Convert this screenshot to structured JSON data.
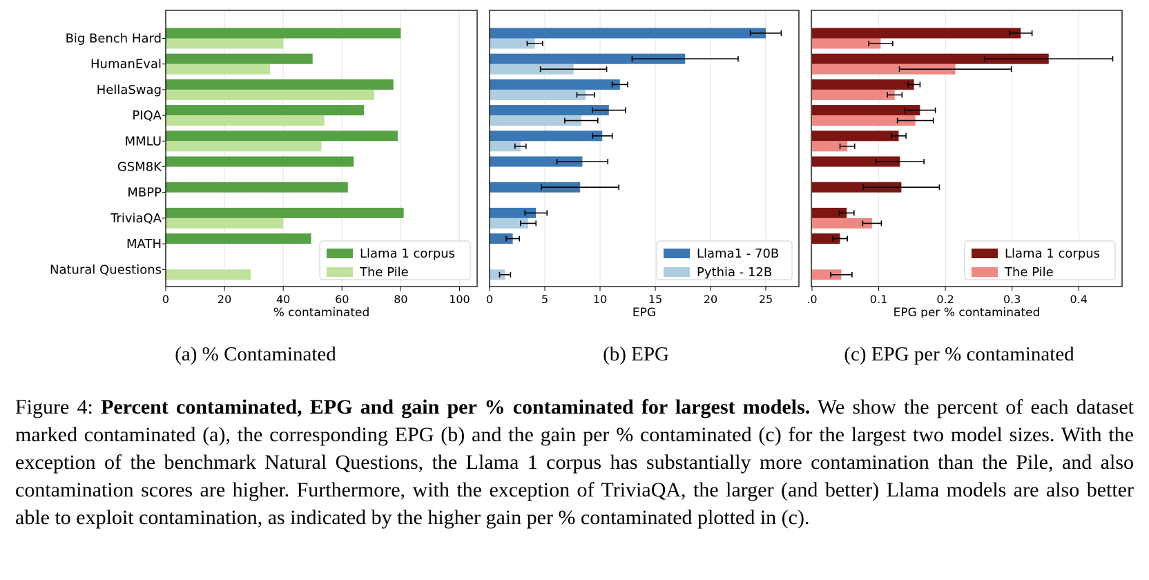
{
  "categories": [
    "Big Bench Hard",
    "HumanEval",
    "HellaSwag",
    "PIQA",
    "MMLU",
    "GSM8K",
    "MBPP",
    "TriviaQA",
    "MATH",
    "Natural Questions"
  ],
  "chart_data": [
    {
      "type": "bar",
      "orientation": "horizontal",
      "panel": "a",
      "xlabel": "% contaminated",
      "xlim": [
        0,
        106
      ],
      "xticks": [
        0,
        20,
        40,
        60,
        80,
        100
      ],
      "grid": "vertical",
      "legend_placement": "lower-right",
      "series": [
        {
          "name": "Llama 1 corpus",
          "color": "#57a145",
          "values": [
            80,
            50,
            77.5,
            67.5,
            79,
            64,
            62,
            81,
            49.5,
            null
          ]
        },
        {
          "name": "The Pile",
          "color": "#bfe29b",
          "values": [
            40,
            35.5,
            71,
            54,
            53,
            null,
            null,
            40,
            null,
            29
          ]
        }
      ]
    },
    {
      "type": "bar",
      "orientation": "horizontal",
      "panel": "b",
      "xlabel": "EPG",
      "xlim": [
        0,
        28
      ],
      "xticks": [
        0,
        5,
        10,
        15,
        20,
        25
      ],
      "grid": "vertical",
      "legend_placement": "lower-right",
      "series": [
        {
          "name": "Llama1 - 70B",
          "color": "#3a77b3",
          "values": [
            25,
            17.7,
            11.8,
            10.8,
            10.2,
            8.4,
            8.2,
            4.2,
            2.1,
            null
          ],
          "err": [
            1.4,
            4.8,
            0.7,
            1.5,
            0.9,
            2.3,
            3.5,
            1.0,
            0.6,
            null
          ]
        },
        {
          "name": "Pythia - 12B",
          "color": "#afcde1",
          "values": [
            4.1,
            7.6,
            8.7,
            8.3,
            2.8,
            null,
            null,
            3.5,
            null,
            1.4
          ],
          "err": [
            0.7,
            3.0,
            0.8,
            1.5,
            0.5,
            null,
            null,
            0.7,
            null,
            0.5
          ]
        }
      ]
    },
    {
      "type": "bar",
      "orientation": "horizontal",
      "panel": "c",
      "xlabel": "EPG per % contaminated",
      "xlim": [
        -0.001,
        0.465
      ],
      "xticks": [
        0.0,
        0.1,
        0.2,
        0.3,
        0.4
      ],
      "xtick_labels": [
        ".0",
        "0.1",
        "0.2",
        "0.3",
        "0.4"
      ],
      "grid": "vertical",
      "legend_placement": "lower-right",
      "series": [
        {
          "name": "Llama 1 corpus",
          "color": "#7c1613",
          "values": [
            0.313,
            0.355,
            0.153,
            0.162,
            0.13,
            0.132,
            0.134,
            0.052,
            0.042,
            null
          ],
          "err": [
            0.017,
            0.096,
            0.009,
            0.023,
            0.011,
            0.036,
            0.057,
            0.011,
            0.011,
            null
          ]
        },
        {
          "name": "The Pile",
          "color": "#ee8883",
          "values": [
            0.103,
            0.215,
            0.124,
            0.155,
            0.053,
            null,
            null,
            0.09,
            null,
            0.044
          ],
          "err": [
            0.018,
            0.084,
            0.011,
            0.027,
            0.011,
            null,
            null,
            0.014,
            null,
            0.016
          ]
        }
      ]
    }
  ],
  "sublabels": [
    "(a) % Contaminated",
    "(b) EPG",
    "(c) EPG per % contaminated"
  ],
  "caption": {
    "prefix": "Figure 4: ",
    "bold": "Percent contaminated, EPG and gain per % contaminated for largest models.",
    "body": " We show the percent of each dataset marked contaminated (a), the corresponding EPG (b) and the gain per % contaminated (c) for the largest two model sizes. With the exception of the benchmark Natural Questions, the Llama 1 corpus has substantially more contamination than the Pile, and also contamination scores are higher. Furthermore, with the exception of TriviaQA, the larger (and better) Llama models are also better able to exploit contamination, as indicated by the higher gain per % contaminated plotted in (c)."
  }
}
